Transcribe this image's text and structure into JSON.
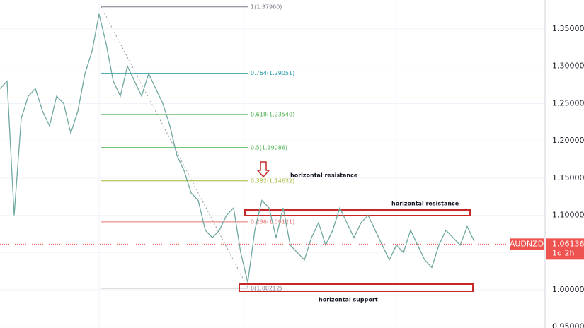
{
  "chart_data": {
    "type": "line",
    "symbol": "AUDNZD",
    "color": "#6fa8a0",
    "values": [
      1.27,
      1.28,
      1.1,
      1.23,
      1.26,
      1.27,
      1.24,
      1.22,
      1.26,
      1.25,
      1.21,
      1.24,
      1.29,
      1.32,
      1.37,
      1.33,
      1.28,
      1.26,
      1.3,
      1.28,
      1.26,
      1.29,
      1.27,
      1.25,
      1.22,
      1.18,
      1.16,
      1.13,
      1.12,
      1.08,
      1.07,
      1.08,
      1.1,
      1.11,
      1.05,
      1.01,
      1.08,
      1.12,
      1.11,
      1.07,
      1.11,
      1.06,
      1.05,
      1.04,
      1.07,
      1.09,
      1.06,
      1.08,
      1.11,
      1.09,
      1.07,
      1.09,
      1.1,
      1.08,
      1.06,
      1.04,
      1.06,
      1.05,
      1.08,
      1.06,
      1.04,
      1.03,
      1.06,
      1.08,
      1.07,
      1.06,
      1.085,
      1.065
    ],
    "ylim": [
      0.9488,
      1.3889
    ],
    "yticks": [
      {
        "value": 0.95,
        "label": "0.95000"
      },
      {
        "value": 1.0,
        "label": "1.00000"
      },
      {
        "value": 1.05,
        "label": "1.05000"
      },
      {
        "value": 1.1,
        "label": "1.10000"
      },
      {
        "value": 1.15,
        "label": "1.15000"
      },
      {
        "value": 1.2,
        "label": "1.20000"
      },
      {
        "value": 1.25,
        "label": "1.25000"
      },
      {
        "value": 1.3,
        "label": "1.30000"
      },
      {
        "value": 1.35,
        "label": "1.35000"
      }
    ],
    "grid": true,
    "fibonacci": [
      {
        "value": 1.3796,
        "label": "1(1.37960)",
        "color": "#787b86"
      },
      {
        "value": 1.29051,
        "label": "0.764(1.29051)",
        "color": "#2196a8"
      },
      {
        "value": 1.2354,
        "label": "0.618(1.23540)",
        "color": "#4caf50"
      },
      {
        "value": 1.19086,
        "label": "0.5(1.19086)",
        "color": "#4caf50"
      },
      {
        "value": 1.14632,
        "label": "0.382(1.14632)",
        "color": "#a5b83a"
      },
      {
        "value": 1.09121,
        "label": "0.236(1.09121)",
        "color": "#e57373"
      },
      {
        "value": 1.00212,
        "label": "0(1.00212)",
        "color": "#787b86"
      }
    ],
    "last_price": 1.06136,
    "countdown": "1d 2h",
    "annotations": [
      "horizontal resistance",
      "horizontal resistance",
      "horizontal support"
    ]
  }
}
